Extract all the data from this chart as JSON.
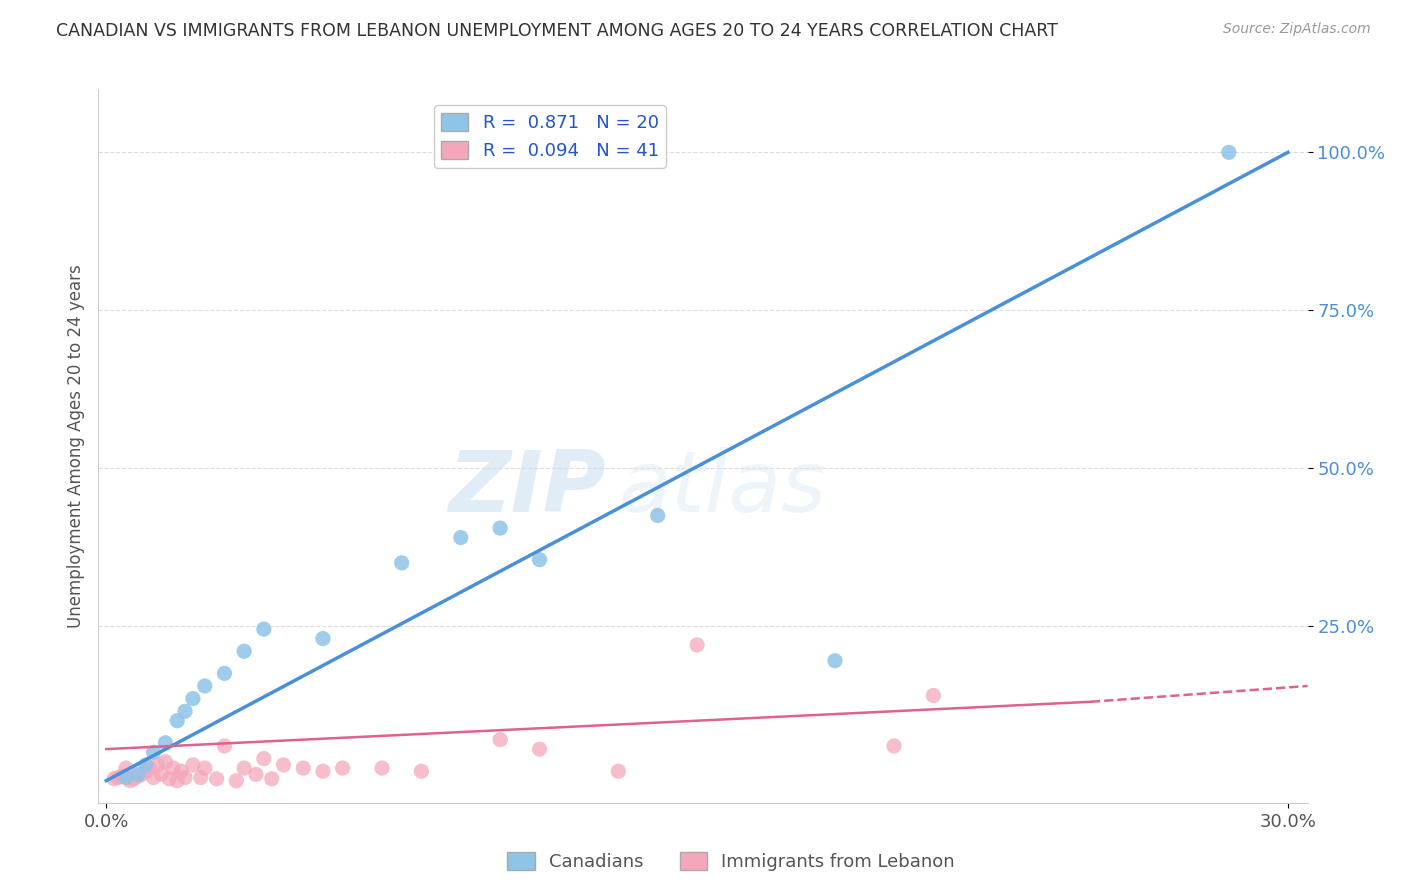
{
  "title": "CANADIAN VS IMMIGRANTS FROM LEBANON UNEMPLOYMENT AMONG AGES 20 TO 24 YEARS CORRELATION CHART",
  "source": "Source: ZipAtlas.com",
  "ylabel": "Unemployment Among Ages 20 to 24 years",
  "xlim": [
    -0.002,
    0.305
  ],
  "ylim": [
    -0.03,
    1.1
  ],
  "xticks": [
    0.0,
    0.3
  ],
  "xtick_labels": [
    "0.0%",
    "30.0%"
  ],
  "ytick_values": [
    0.25,
    0.5,
    0.75,
    1.0
  ],
  "ytick_labels": [
    "25.0%",
    "50.0%",
    "75.0%",
    "100.0%"
  ],
  "canadian_R": 0.871,
  "canadian_N": 20,
  "immigrant_R": 0.094,
  "immigrant_N": 41,
  "canadian_color": "#8ec4e8",
  "immigrant_color": "#f4a7b9",
  "canadian_line_color": "#4a90d9",
  "immigrant_line_color": "#e06090",
  "background_color": "#ffffff",
  "watermark_zip": "ZIP",
  "watermark_atlas": "atlas",
  "canadian_x": [
    0.005,
    0.008,
    0.01,
    0.012,
    0.015,
    0.018,
    0.02,
    0.022,
    0.025,
    0.03,
    0.035,
    0.04,
    0.055,
    0.075,
    0.09,
    0.1,
    0.11,
    0.14,
    0.185,
    0.285
  ],
  "canadian_y": [
    0.01,
    0.015,
    0.03,
    0.05,
    0.065,
    0.1,
    0.115,
    0.135,
    0.155,
    0.175,
    0.21,
    0.245,
    0.23,
    0.35,
    0.39,
    0.405,
    0.355,
    0.425,
    0.195,
    1.0
  ],
  "immigrant_x": [
    0.002,
    0.003,
    0.004,
    0.005,
    0.006,
    0.007,
    0.008,
    0.009,
    0.01,
    0.011,
    0.012,
    0.013,
    0.014,
    0.015,
    0.016,
    0.017,
    0.018,
    0.019,
    0.02,
    0.022,
    0.024,
    0.025,
    0.028,
    0.03,
    0.033,
    0.035,
    0.038,
    0.04,
    0.042,
    0.045,
    0.05,
    0.055,
    0.06,
    0.07,
    0.08,
    0.1,
    0.11,
    0.13,
    0.15,
    0.2,
    0.21
  ],
  "immigrant_y": [
    0.008,
    0.01,
    0.012,
    0.025,
    0.005,
    0.008,
    0.012,
    0.015,
    0.02,
    0.025,
    0.01,
    0.03,
    0.015,
    0.035,
    0.008,
    0.025,
    0.005,
    0.02,
    0.01,
    0.03,
    0.01,
    0.025,
    0.008,
    0.06,
    0.005,
    0.025,
    0.015,
    0.04,
    0.008,
    0.03,
    0.025,
    0.02,
    0.025,
    0.025,
    0.02,
    0.07,
    0.055,
    0.02,
    0.22,
    0.06,
    0.14
  ],
  "legend1_label": "R =  0.871   N = 20",
  "legend2_label": "R =  0.094   N = 41",
  "bottom_legend1": "Canadians",
  "bottom_legend2": "Immigrants from Lebanon"
}
